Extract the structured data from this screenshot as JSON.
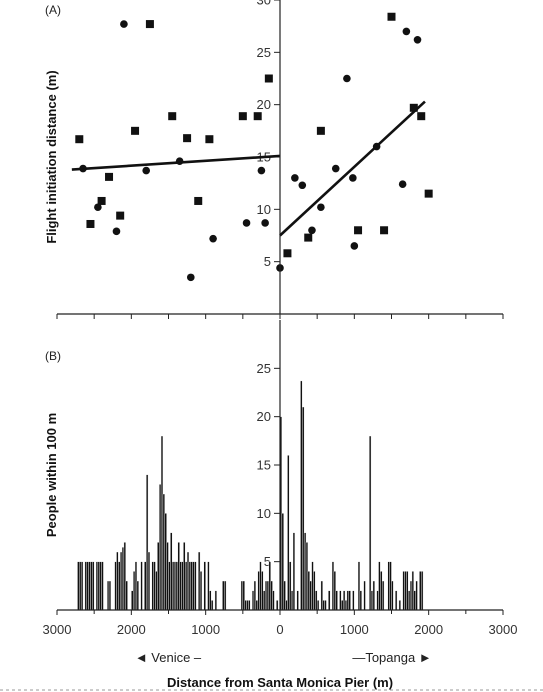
{
  "chart_data": [
    {
      "type": "scatter",
      "panel_label": "(A)",
      "ylabel": "Flight initiation distance (m)",
      "xlim": [
        3000,
        -3000
      ],
      "ylim": [
        0,
        30
      ],
      "yticks": [
        5,
        10,
        15,
        20,
        25,
        30
      ],
      "series": [
        {
          "marker": "square",
          "points": [
            {
              "x": 2700,
              "y": 16.7
            },
            {
              "x": 2550,
              "y": 8.6
            },
            {
              "x": 2400,
              "y": 10.8
            },
            {
              "x": 2300,
              "y": 13.1
            },
            {
              "x": 2150,
              "y": 9.4
            },
            {
              "x": 1950,
              "y": 17.5
            },
            {
              "x": 1750,
              "y": 27.7
            },
            {
              "x": 1450,
              "y": 18.9
            },
            {
              "x": 1250,
              "y": 16.8
            },
            {
              "x": 1100,
              "y": 10.8
            },
            {
              "x": 950,
              "y": 16.7
            },
            {
              "x": 500,
              "y": 18.9
            },
            {
              "x": 300,
              "y": 18.9
            },
            {
              "x": 150,
              "y": 22.5
            },
            {
              "x": -100,
              "y": 5.8
            },
            {
              "x": -380,
              "y": 7.3
            },
            {
              "x": -550,
              "y": 17.5
            },
            {
              "x": -1050,
              "y": 8.0
            },
            {
              "x": -1400,
              "y": 8.0
            },
            {
              "x": -1500,
              "y": 28.4
            },
            {
              "x": -1800,
              "y": 19.7
            },
            {
              "x": -1900,
              "y": 18.9
            },
            {
              "x": -2000,
              "y": 11.5
            }
          ]
        },
        {
          "marker": "circle",
          "points": [
            {
              "x": 2650,
              "y": 13.9
            },
            {
              "x": 2450,
              "y": 10.2
            },
            {
              "x": 2200,
              "y": 7.9
            },
            {
              "x": 2100,
              "y": 27.7
            },
            {
              "x": 1800,
              "y": 13.7
            },
            {
              "x": 1350,
              "y": 14.6
            },
            {
              "x": 1200,
              "y": 3.5
            },
            {
              "x": 900,
              "y": 7.2
            },
            {
              "x": 450,
              "y": 8.7
            },
            {
              "x": 250,
              "y": 13.7
            },
            {
              "x": 200,
              "y": 8.7
            },
            {
              "x": 0,
              "y": 4.4
            },
            {
              "x": -200,
              "y": 13.0
            },
            {
              "x": -300,
              "y": 12.3
            },
            {
              "x": -430,
              "y": 8.0
            },
            {
              "x": -550,
              "y": 10.2
            },
            {
              "x": -750,
              "y": 13.9
            },
            {
              "x": -900,
              "y": 22.5
            },
            {
              "x": -1000,
              "y": 6.5
            },
            {
              "x": -980,
              "y": 13.0
            },
            {
              "x": -1300,
              "y": 16.0
            },
            {
              "x": -1650,
              "y": 12.4
            },
            {
              "x": -1700,
              "y": 27.0
            },
            {
              "x": -1850,
              "y": 26.2
            }
          ]
        }
      ],
      "fit_lines": [
        {
          "x": [
            2800,
            0
          ],
          "y": [
            13.8,
            15.1
          ]
        },
        {
          "x": [
            0,
            -1950
          ],
          "y": [
            7.5,
            20.3
          ]
        }
      ]
    },
    {
      "type": "bar",
      "panel_label": "(B)",
      "ylabel": "People within 100 m",
      "xlabel": "Distance from Santa Monica Pier (m)",
      "xlim": [
        3000,
        -3000
      ],
      "ylim": [
        0,
        30
      ],
      "yticks": [
        5,
        10,
        15,
        20,
        25
      ],
      "xticks": [
        3000,
        2000,
        1000,
        0,
        1000,
        2000,
        3000
      ],
      "direction_labels": {
        "left": "◄ Venice –",
        "right": "—Topanga ►"
      },
      "bin_width": 25,
      "bars": [
        {
          "x": 2725,
          "value": 5
        },
        {
          "x": 2700,
          "value": 5
        },
        {
          "x": 2675,
          "value": 5
        },
        {
          "x": 2625,
          "value": 5
        },
        {
          "x": 2600,
          "value": 5
        },
        {
          "x": 2575,
          "value": 5
        },
        {
          "x": 2550,
          "value": 5
        },
        {
          "x": 2525,
          "value": 5
        },
        {
          "x": 2475,
          "value": 5
        },
        {
          "x": 2450,
          "value": 5
        },
        {
          "x": 2425,
          "value": 5
        },
        {
          "x": 2400,
          "value": 5
        },
        {
          "x": 2325,
          "value": 3
        },
        {
          "x": 2300,
          "value": 3
        },
        {
          "x": 2225,
          "value": 5
        },
        {
          "x": 2200,
          "value": 6
        },
        {
          "x": 2175,
          "value": 5
        },
        {
          "x": 2150,
          "value": 6
        },
        {
          "x": 2125,
          "value": 6.5
        },
        {
          "x": 2100,
          "value": 7
        },
        {
          "x": 2075,
          "value": 3
        },
        {
          "x": 2000,
          "value": 2
        },
        {
          "x": 1975,
          "value": 4
        },
        {
          "x": 1950,
          "value": 5
        },
        {
          "x": 1925,
          "value": 3
        },
        {
          "x": 1875,
          "value": 5
        },
        {
          "x": 1825,
          "value": 5
        },
        {
          "x": 1800,
          "value": 14
        },
        {
          "x": 1775,
          "value": 6
        },
        {
          "x": 1725,
          "value": 5
        },
        {
          "x": 1700,
          "value": 5
        },
        {
          "x": 1675,
          "value": 4
        },
        {
          "x": 1650,
          "value": 7
        },
        {
          "x": 1625,
          "value": 13
        },
        {
          "x": 1600,
          "value": 18
        },
        {
          "x": 1575,
          "value": 12
        },
        {
          "x": 1550,
          "value": 10
        },
        {
          "x": 1525,
          "value": 7
        },
        {
          "x": 1500,
          "value": 5
        },
        {
          "x": 1475,
          "value": 8
        },
        {
          "x": 1450,
          "value": 5
        },
        {
          "x": 1425,
          "value": 5
        },
        {
          "x": 1400,
          "value": 5
        },
        {
          "x": 1375,
          "value": 7
        },
        {
          "x": 1350,
          "value": 5
        },
        {
          "x": 1325,
          "value": 5
        },
        {
          "x": 1300,
          "value": 7
        },
        {
          "x": 1275,
          "value": 5
        },
        {
          "x": 1250,
          "value": 6
        },
        {
          "x": 1225,
          "value": 5
        },
        {
          "x": 1200,
          "value": 5
        },
        {
          "x": 1175,
          "value": 5
        },
        {
          "x": 1150,
          "value": 5
        },
        {
          "x": 1100,
          "value": 6
        },
        {
          "x": 1075,
          "value": 4
        },
        {
          "x": 1025,
          "value": 5
        },
        {
          "x": 975,
          "value": 5
        },
        {
          "x": 950,
          "value": 2
        },
        {
          "x": 925,
          "value": 1
        },
        {
          "x": 875,
          "value": 2
        },
        {
          "x": 775,
          "value": 3
        },
        {
          "x": 750,
          "value": 3
        },
        {
          "x": 525,
          "value": 3
        },
        {
          "x": 500,
          "value": 3
        },
        {
          "x": 475,
          "value": 1
        },
        {
          "x": 450,
          "value": 1
        },
        {
          "x": 425,
          "value": 1
        },
        {
          "x": 375,
          "value": 2
        },
        {
          "x": 350,
          "value": 3
        },
        {
          "x": 325,
          "value": 1
        },
        {
          "x": 300,
          "value": 4
        },
        {
          "x": 275,
          "value": 5
        },
        {
          "x": 250,
          "value": 4
        },
        {
          "x": 225,
          "value": 2
        },
        {
          "x": 200,
          "value": 3
        },
        {
          "x": 175,
          "value": 3
        },
        {
          "x": 150,
          "value": 5
        },
        {
          "x": 125,
          "value": 3
        },
        {
          "x": 100,
          "value": 2
        },
        {
          "x": 50,
          "value": 1
        },
        {
          "x": 0,
          "value": 20
        },
        {
          "x": -25,
          "value": 10
        },
        {
          "x": -50,
          "value": 3
        },
        {
          "x": -75,
          "value": 1
        },
        {
          "x": -100,
          "value": 16
        },
        {
          "x": -125,
          "value": 5
        },
        {
          "x": -150,
          "value": 2
        },
        {
          "x": -175,
          "value": 8
        },
        {
          "x": -225,
          "value": 2
        },
        {
          "x": -275,
          "value": 23.7
        },
        {
          "x": -300,
          "value": 21
        },
        {
          "x": -325,
          "value": 8
        },
        {
          "x": -350,
          "value": 7
        },
        {
          "x": -375,
          "value": 4
        },
        {
          "x": -400,
          "value": 3
        },
        {
          "x": -425,
          "value": 5
        },
        {
          "x": -450,
          "value": 4
        },
        {
          "x": -475,
          "value": 2
        },
        {
          "x": -500,
          "value": 1
        },
        {
          "x": -550,
          "value": 3
        },
        {
          "x": -575,
          "value": 1
        },
        {
          "x": -600,
          "value": 1
        },
        {
          "x": -650,
          "value": 2
        },
        {
          "x": -700,
          "value": 5
        },
        {
          "x": -725,
          "value": 4
        },
        {
          "x": -750,
          "value": 2
        },
        {
          "x": -800,
          "value": 2
        },
        {
          "x": -825,
          "value": 1
        },
        {
          "x": -850,
          "value": 2
        },
        {
          "x": -875,
          "value": 1
        },
        {
          "x": -900,
          "value": 2
        },
        {
          "x": -925,
          "value": 2
        },
        {
          "x": -975,
          "value": 2
        },
        {
          "x": -1050,
          "value": 5
        },
        {
          "x": -1075,
          "value": 2
        },
        {
          "x": -1125,
          "value": 3
        },
        {
          "x": -1200,
          "value": 18
        },
        {
          "x": -1225,
          "value": 2
        },
        {
          "x": -1250,
          "value": 3
        },
        {
          "x": -1300,
          "value": 2
        },
        {
          "x": -1325,
          "value": 5
        },
        {
          "x": -1350,
          "value": 4
        },
        {
          "x": -1375,
          "value": 3
        },
        {
          "x": -1450,
          "value": 5
        },
        {
          "x": -1475,
          "value": 5
        },
        {
          "x": -1500,
          "value": 3
        },
        {
          "x": -1550,
          "value": 2
        },
        {
          "x": -1600,
          "value": 1
        },
        {
          "x": -1650,
          "value": 4
        },
        {
          "x": -1675,
          "value": 4
        },
        {
          "x": -1700,
          "value": 4
        },
        {
          "x": -1725,
          "value": 2
        },
        {
          "x": -1750,
          "value": 3
        },
        {
          "x": -1775,
          "value": 4
        },
        {
          "x": -1800,
          "value": 2
        },
        {
          "x": -1825,
          "value": 3
        },
        {
          "x": -1875,
          "value": 4
        },
        {
          "x": -1900,
          "value": 4
        }
      ]
    }
  ]
}
